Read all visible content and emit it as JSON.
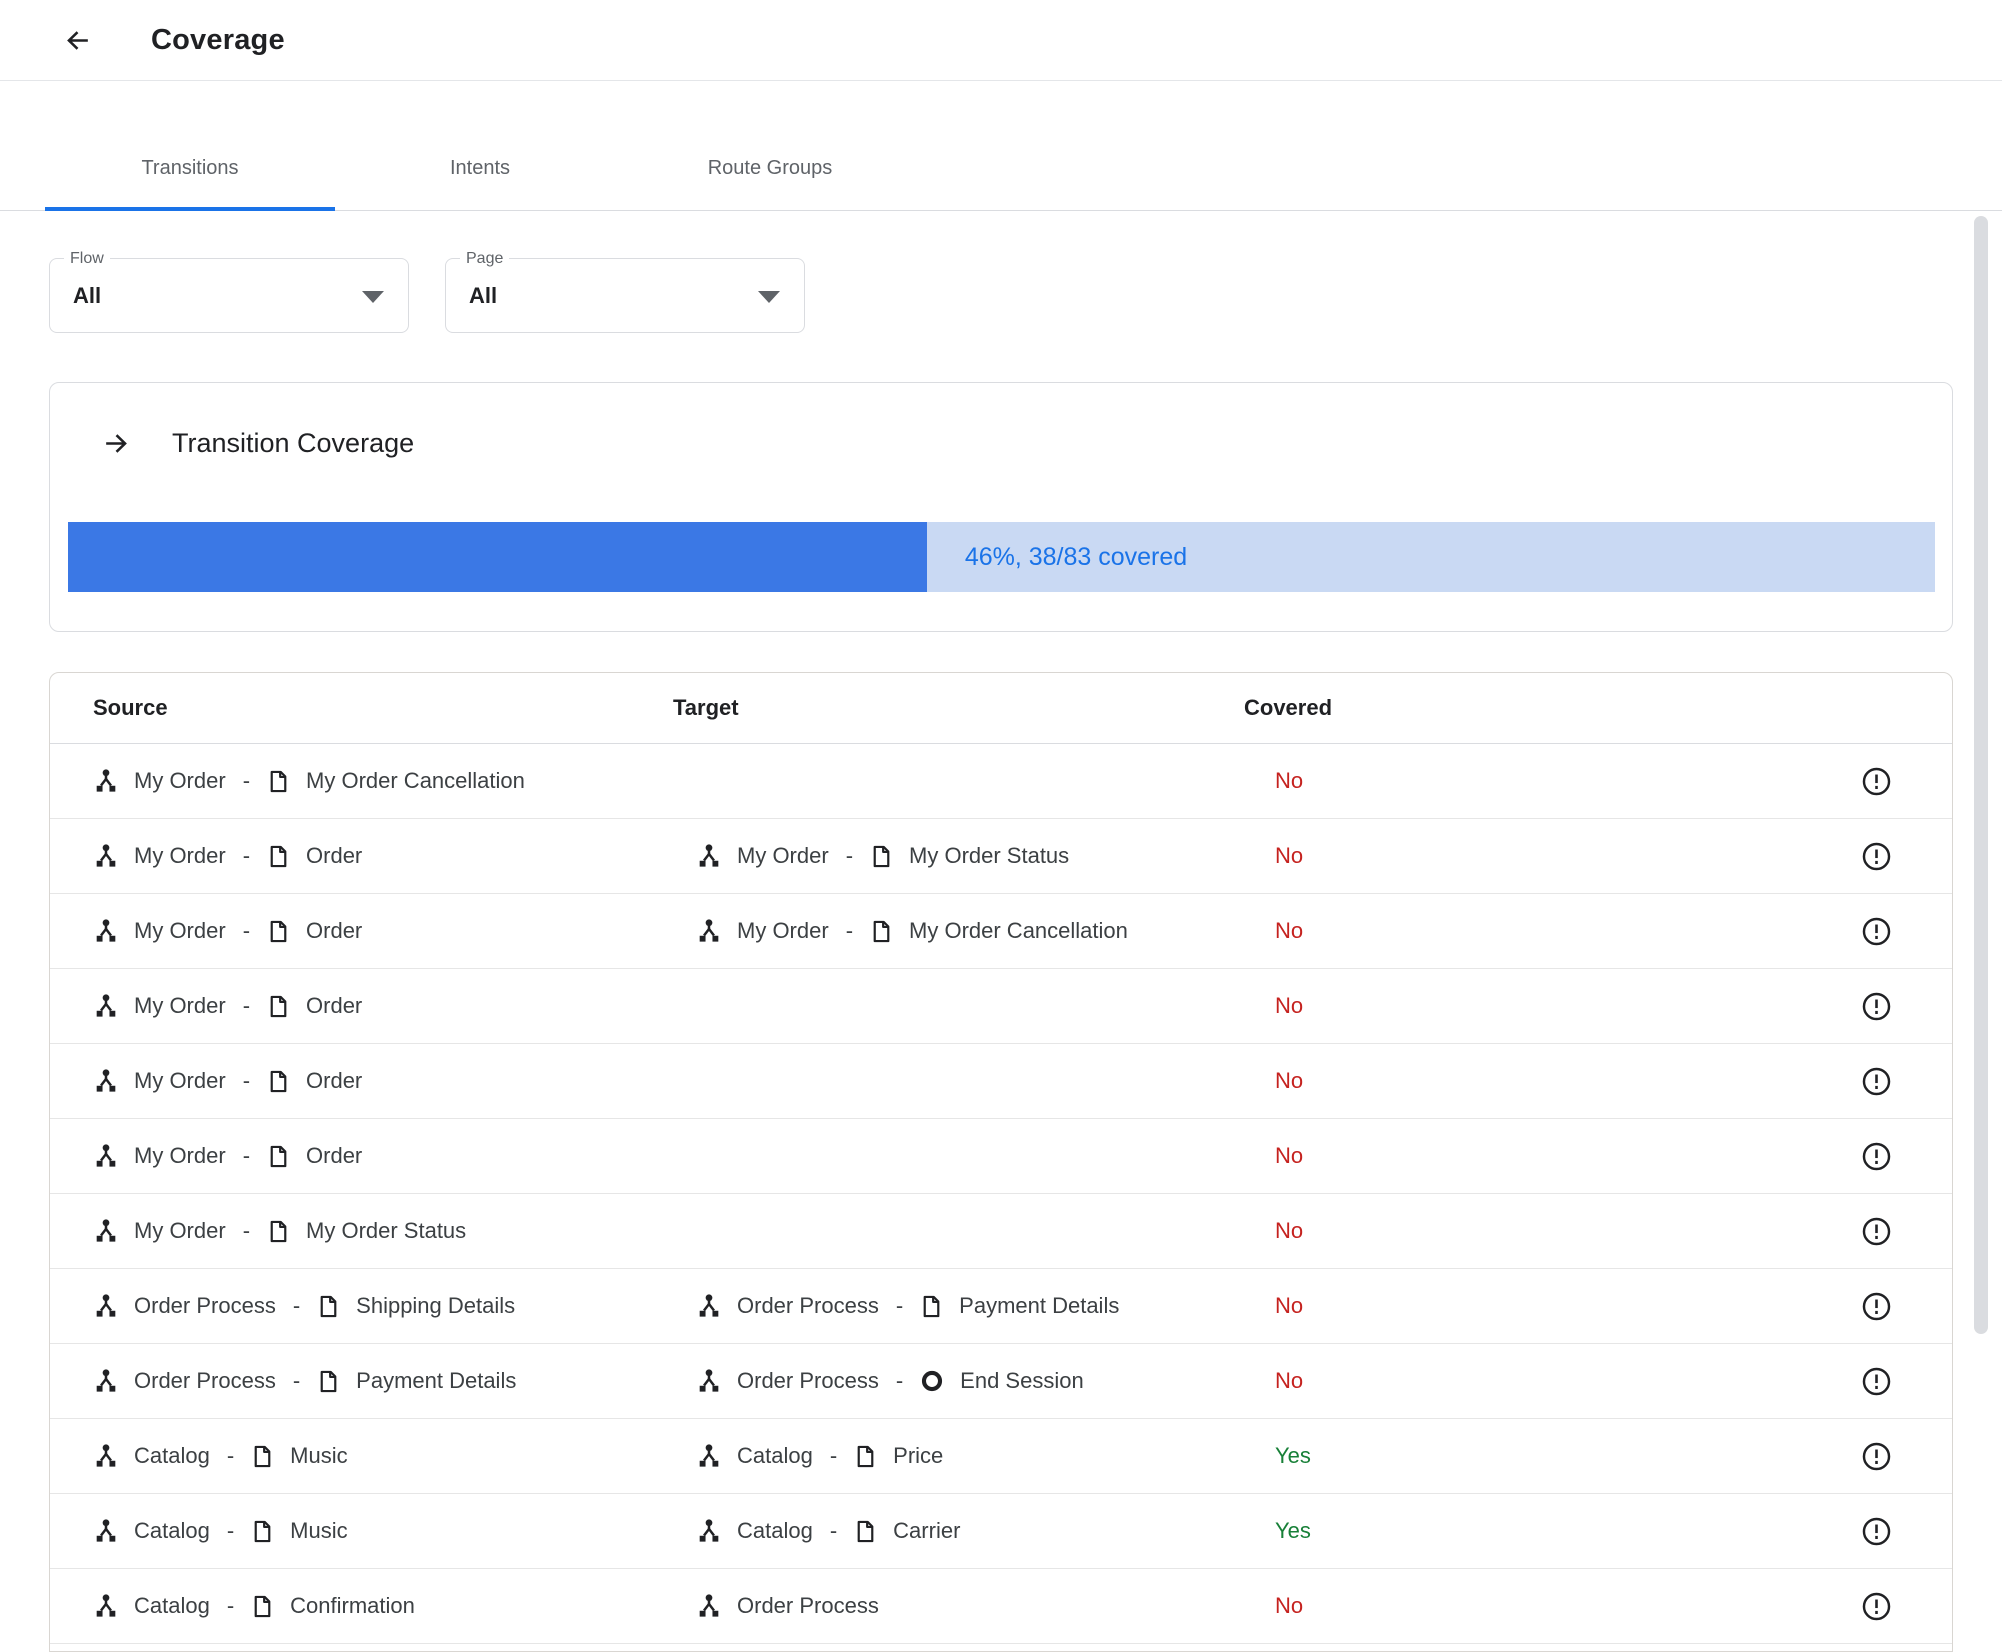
{
  "header": {
    "title": "Coverage",
    "back_icon": "arrow-back"
  },
  "tabs": [
    {
      "label": "Transitions",
      "active": true
    },
    {
      "label": "Intents",
      "active": false
    },
    {
      "label": "Route Groups",
      "active": false
    }
  ],
  "filters": {
    "flow": {
      "label": "Flow",
      "value": "All"
    },
    "page": {
      "label": "Page",
      "value": "All"
    }
  },
  "coverage_card": {
    "icon": "arrow-right",
    "title": "Transition Coverage",
    "percent": 46,
    "label": "46%, 38/83 covered"
  },
  "colors": {
    "accent": "#1a73e8",
    "bar_fill": "#3b78e5",
    "bar_track": "#c9d9f3",
    "covered_yes": "#188038",
    "covered_no": "#c5221f"
  },
  "icons": {
    "flow": "flow-icon",
    "page": "page-icon",
    "end_session": "end-session-icon",
    "alert": "alert-circle-icon"
  },
  "table": {
    "columns": [
      "Source",
      "Target",
      "Covered"
    ],
    "rows": [
      {
        "source": {
          "flow": "My Order",
          "page": "My Order Cancellation",
          "page_icon": "page"
        },
        "target": null,
        "covered": "No"
      },
      {
        "source": {
          "flow": "My Order",
          "page": "Order",
          "page_icon": "page"
        },
        "target": {
          "flow": "My Order",
          "page": "My Order Status",
          "page_icon": "page"
        },
        "covered": "No"
      },
      {
        "source": {
          "flow": "My Order",
          "page": "Order",
          "page_icon": "page"
        },
        "target": {
          "flow": "My Order",
          "page": "My Order Cancellation",
          "page_icon": "page"
        },
        "covered": "No"
      },
      {
        "source": {
          "flow": "My Order",
          "page": "Order",
          "page_icon": "page"
        },
        "target": null,
        "covered": "No"
      },
      {
        "source": {
          "flow": "My Order",
          "page": "Order",
          "page_icon": "page"
        },
        "target": null,
        "covered": "No"
      },
      {
        "source": {
          "flow": "My Order",
          "page": "Order",
          "page_icon": "page"
        },
        "target": null,
        "covered": "No"
      },
      {
        "source": {
          "flow": "My Order",
          "page": "My Order Status",
          "page_icon": "page"
        },
        "target": null,
        "covered": "No"
      },
      {
        "source": {
          "flow": "Order Process",
          "page": "Shipping Details",
          "page_icon": "page"
        },
        "target": {
          "flow": "Order Process",
          "page": "Payment Details",
          "page_icon": "page"
        },
        "covered": "No"
      },
      {
        "source": {
          "flow": "Order Process",
          "page": "Payment Details",
          "page_icon": "page"
        },
        "target": {
          "flow": "Order Process",
          "page": "End Session",
          "page_icon": "end-session"
        },
        "covered": "No"
      },
      {
        "source": {
          "flow": "Catalog",
          "page": "Music",
          "page_icon": "page"
        },
        "target": {
          "flow": "Catalog",
          "page": "Price",
          "page_icon": "page"
        },
        "covered": "Yes"
      },
      {
        "source": {
          "flow": "Catalog",
          "page": "Music",
          "page_icon": "page"
        },
        "target": {
          "flow": "Catalog",
          "page": "Carrier",
          "page_icon": "page"
        },
        "covered": "Yes"
      },
      {
        "source": {
          "flow": "Catalog",
          "page": "Confirmation",
          "page_icon": "page"
        },
        "target": {
          "flow": "Order Process",
          "page": null,
          "page_icon": null
        },
        "covered": "No"
      }
    ]
  }
}
